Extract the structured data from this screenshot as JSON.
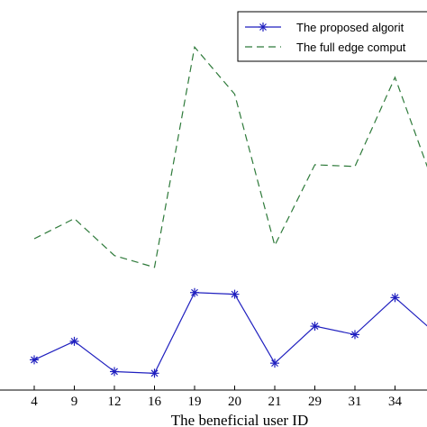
{
  "chart_data": {
    "type": "line",
    "categories": [
      "4",
      "9",
      "12",
      "16",
      "19",
      "20",
      "21",
      "29",
      "31",
      "34",
      ""
    ],
    "xlabel": "The beneficial user ID",
    "ylabel": "",
    "title": "",
    "grid": false,
    "legend_placement": "top-right",
    "series": [
      {
        "name": "The proposed algorit",
        "color": "#1f1fbf",
        "line_style": "solid",
        "marker": "asterisk",
        "values": [
          0.9,
          1.45,
          0.55,
          0.5,
          2.9,
          2.85,
          0.8,
          1.9,
          1.65,
          2.75,
          1.7
        ]
      },
      {
        "name": "The full edge comput",
        "color": "#2e7a3a",
        "line_style": "dashed",
        "marker": "none",
        "values": [
          4.5,
          5.1,
          4.0,
          3.65,
          10.2,
          8.8,
          4.3,
          6.7,
          6.65,
          9.3,
          6.0
        ]
      }
    ],
    "ylim": [
      0,
      11.6
    ]
  }
}
